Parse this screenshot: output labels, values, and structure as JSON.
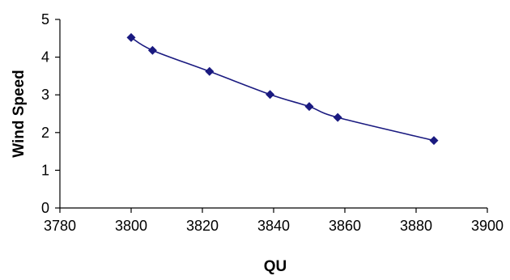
{
  "chart_data": {
    "type": "line",
    "title": "",
    "xlabel": "QU",
    "ylabel": "Wind Speed",
    "xlim": [
      3780,
      3900
    ],
    "ylim": [
      0,
      5
    ],
    "x_ticks": [
      "3780",
      "3800",
      "3820",
      "3840",
      "3860",
      "3880",
      "3900"
    ],
    "y_ticks": [
      "0",
      "1",
      "2",
      "3",
      "4",
      "5"
    ],
    "grid": false,
    "legend": "none",
    "smooth": true,
    "marker": "diamond",
    "colors": {
      "line": "#1a1a80",
      "marker": "#1a1a80",
      "axis": "#000000"
    },
    "series": [
      {
        "x": [
          3800,
          3806,
          3822,
          3839,
          3850,
          3858,
          3885
        ],
        "y": [
          4.52,
          4.18,
          3.62,
          3.01,
          2.69,
          2.4,
          1.79
        ]
      }
    ]
  }
}
